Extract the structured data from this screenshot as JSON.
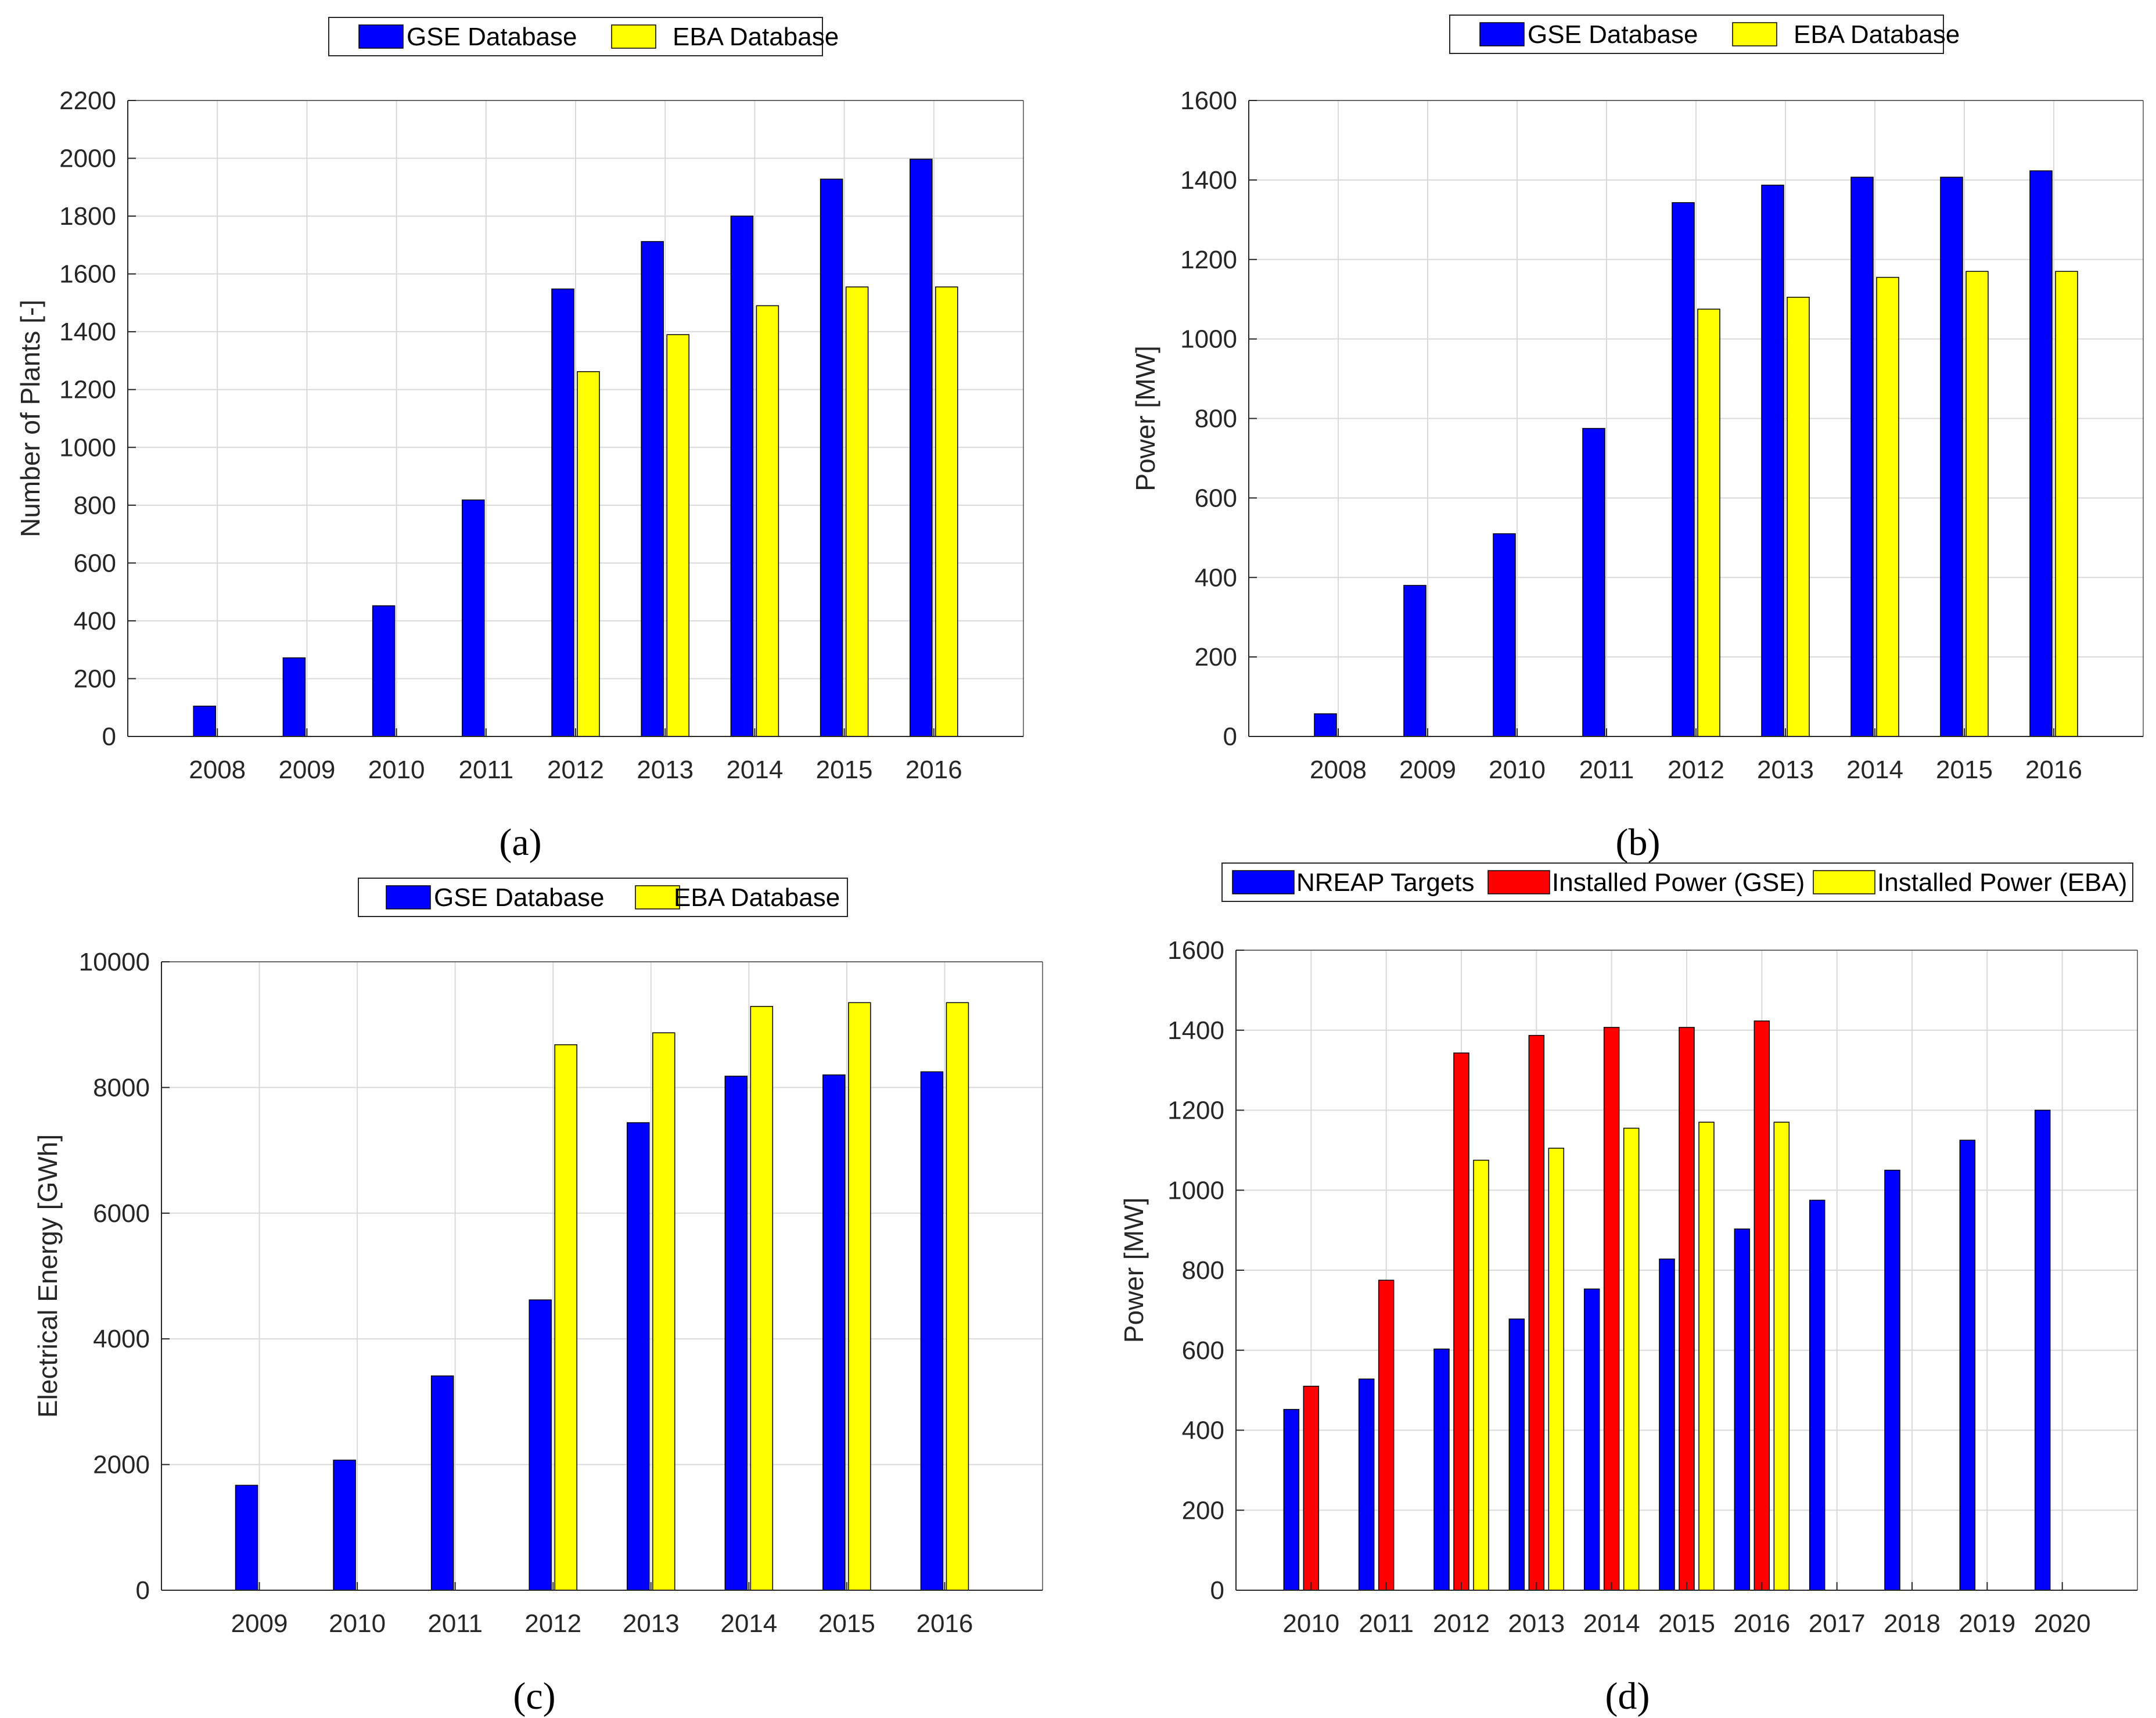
{
  "colors": {
    "blue": "#0000ff",
    "yellow": "#ffff00",
    "red": "#ff0000"
  },
  "chart_data": [
    {
      "type": "bar",
      "panel_label": "(a)",
      "title": "",
      "xlabel": "",
      "ylabel": "Number of Plants [-]",
      "ylim": [
        0,
        2200
      ],
      "yticks": [
        0,
        200,
        400,
        600,
        800,
        1000,
        1200,
        1400,
        1600,
        1800,
        2000,
        2200
      ],
      "categories": [
        "2008",
        "2009",
        "2010",
        "2011",
        "2012",
        "2013",
        "2014",
        "2015",
        "2016"
      ],
      "series": [
        {
          "name": "GSE Database",
          "color": "#0000ff",
          "values": [
            105,
            272,
            452,
            818,
            1548,
            1712,
            1800,
            1928,
            1997
          ]
        },
        {
          "name": "EBA Database",
          "color": "#ffff00",
          "values": [
            null,
            null,
            null,
            null,
            1262,
            1390,
            1490,
            1555,
            1555
          ]
        }
      ],
      "legend": [
        "GSE Database",
        "EBA Database"
      ],
      "legend_position": "top-center",
      "grid": true
    },
    {
      "type": "bar",
      "panel_label": "(b)",
      "title": "",
      "xlabel": "",
      "ylabel": "Power [MW]",
      "ylim": [
        0,
        1600
      ],
      "yticks": [
        0,
        200,
        400,
        600,
        800,
        1000,
        1200,
        1400,
        1600
      ],
      "categories": [
        "2008",
        "2009",
        "2010",
        "2011",
        "2012",
        "2013",
        "2014",
        "2015",
        "2016"
      ],
      "series": [
        {
          "name": "GSE Database",
          "color": "#0000ff",
          "values": [
            57,
            380,
            510,
            775,
            1343,
            1387,
            1407,
            1407,
            1423
          ]
        },
        {
          "name": "EBA Database",
          "color": "#ffff00",
          "values": [
            null,
            null,
            null,
            null,
            1075,
            1105,
            1155,
            1170,
            1170
          ]
        }
      ],
      "legend": [
        "GSE Database",
        "EBA Database"
      ],
      "legend_position": "top-center",
      "grid": true
    },
    {
      "type": "bar",
      "panel_label": "(c)",
      "title": "",
      "xlabel": "",
      "ylabel": "Electrical Energy [GWh]",
      "ylim": [
        0,
        10000
      ],
      "yticks": [
        0,
        2000,
        4000,
        6000,
        8000,
        10000
      ],
      "categories": [
        "2009",
        "2010",
        "2011",
        "2012",
        "2013",
        "2014",
        "2015",
        "2016"
      ],
      "series": [
        {
          "name": "GSE Database",
          "color": "#0000ff",
          "values": [
            1670,
            2070,
            3410,
            4620,
            7440,
            8180,
            8200,
            8250
          ]
        },
        {
          "name": "EBA Database",
          "color": "#ffff00",
          "values": [
            null,
            null,
            null,
            8680,
            8870,
            9290,
            9350,
            9350
          ]
        }
      ],
      "legend": [
        "GSE Database",
        "EBA Database"
      ],
      "legend_position": "top-center",
      "grid": true
    },
    {
      "type": "bar",
      "panel_label": "(d)",
      "title": "",
      "xlabel": "",
      "ylabel": "Power [MW]",
      "ylim": [
        0,
        1600
      ],
      "yticks": [
        0,
        200,
        400,
        600,
        800,
        1000,
        1200,
        1400,
        1600
      ],
      "categories": [
        "2010",
        "2011",
        "2012",
        "2013",
        "2014",
        "2015",
        "2016",
        "2017",
        "2018",
        "2019",
        "2020"
      ],
      "series": [
        {
          "name": "NREAP Targets",
          "color": "#0000ff",
          "values": [
            452,
            528,
            603,
            678,
            753,
            828,
            903,
            975,
            1050,
            1125,
            1200
          ]
        },
        {
          "name": "Installed Power (GSE)",
          "color": "#ff0000",
          "values": [
            510,
            775,
            1343,
            1387,
            1407,
            1407,
            1423,
            null,
            null,
            null,
            null
          ]
        },
        {
          "name": "Installed Power (EBA)",
          "color": "#ffff00",
          "values": [
            null,
            null,
            1075,
            1105,
            1155,
            1170,
            1170,
            null,
            null,
            null,
            null
          ]
        }
      ],
      "legend": [
        "NREAP Targets",
        "Installed Power (GSE)",
        "Installed Power (EBA)"
      ],
      "legend_position": "top-center",
      "grid": true
    }
  ]
}
